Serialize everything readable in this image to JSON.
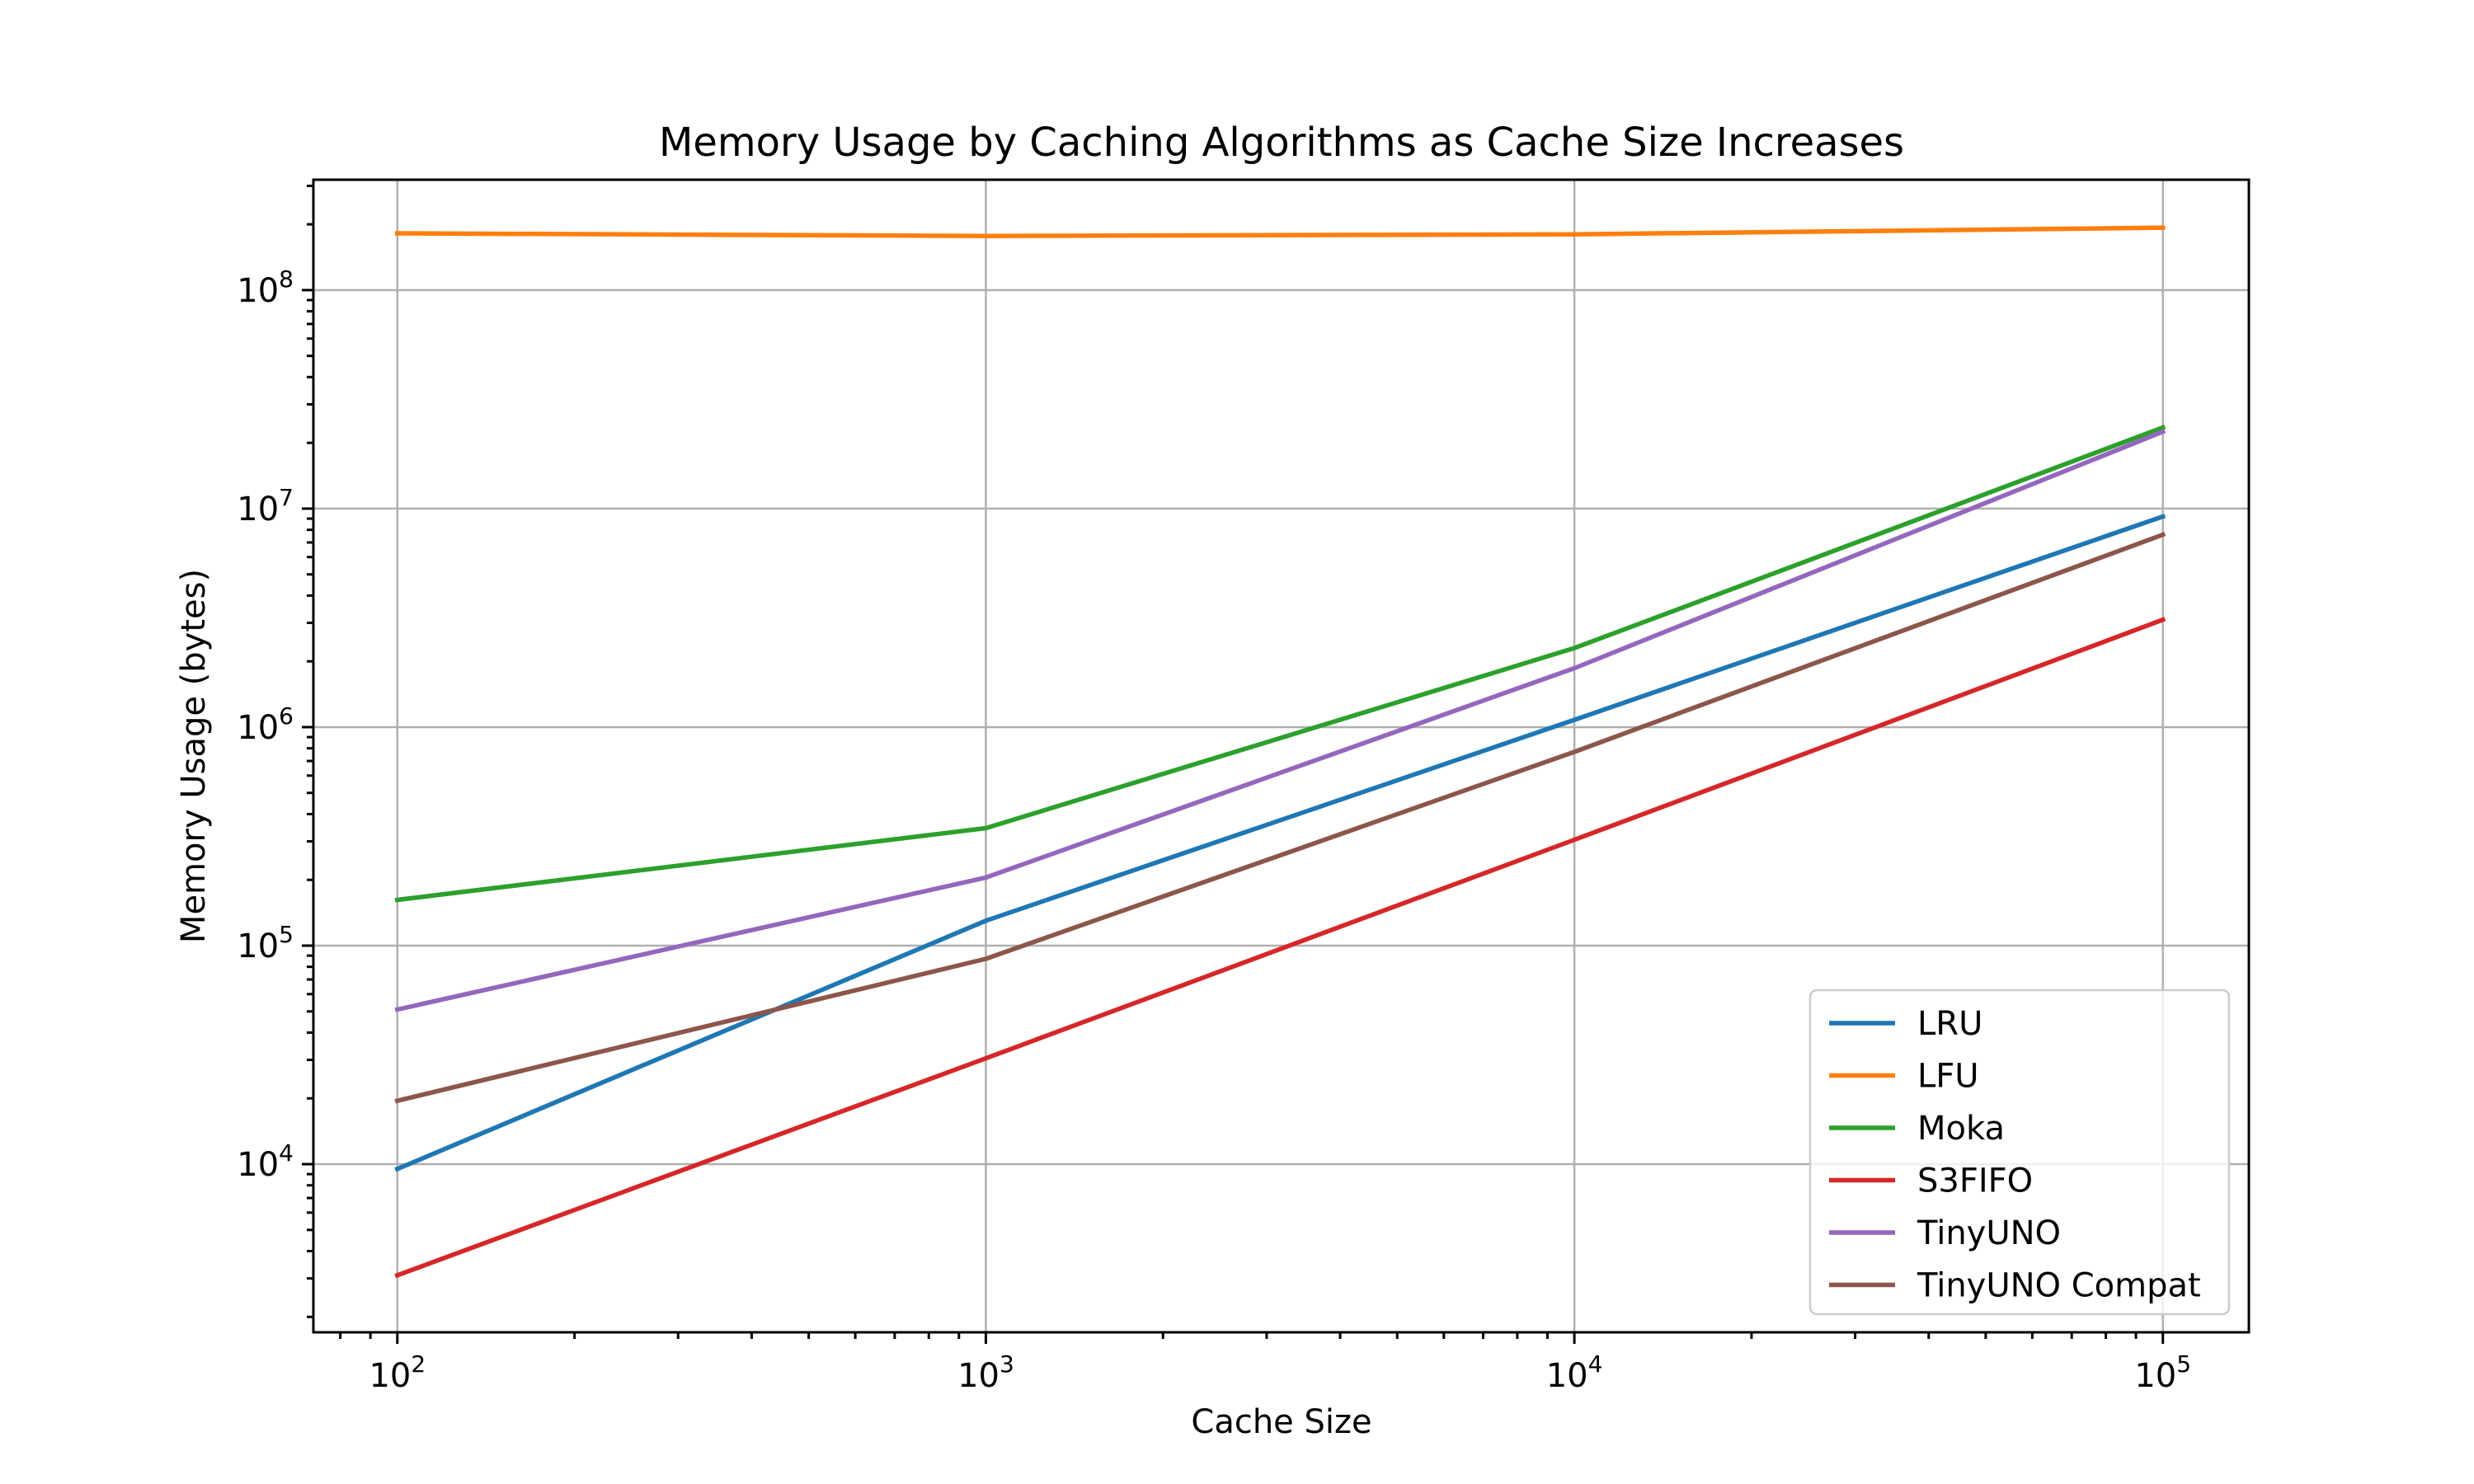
{
  "chart_data": {
    "type": "line",
    "title": "Memory Usage by Caching Algorithms as Cache Size Increases",
    "xlabel": "Cache Size",
    "ylabel": "Memory Usage (bytes)",
    "xscale": "log",
    "yscale": "log",
    "xlim": [
      72,
      140000
    ],
    "ylim": [
      1700,
      320000000
    ],
    "x": [
      100,
      1000,
      10000,
      100000
    ],
    "x_ticks": [
      {
        "value": 100,
        "base": "10",
        "exp": "2"
      },
      {
        "value": 1000,
        "base": "10",
        "exp": "3"
      },
      {
        "value": 10000,
        "base": "10",
        "exp": "4"
      },
      {
        "value": 100000,
        "base": "10",
        "exp": "5"
      }
    ],
    "y_ticks": [
      {
        "value": 10000,
        "base": "10",
        "exp": "4"
      },
      {
        "value": 100000,
        "base": "10",
        "exp": "5"
      },
      {
        "value": 1000000,
        "base": "10",
        "exp": "6"
      },
      {
        "value": 10000000,
        "base": "10",
        "exp": "7"
      },
      {
        "value": 100000000,
        "base": "10",
        "exp": "8"
      }
    ],
    "grid": true,
    "legend_position": "lower-right",
    "series": [
      {
        "name": "LRU",
        "color": "#1f77b4",
        "values": [
          9500,
          130000,
          1080000,
          9200000
        ]
      },
      {
        "name": "LFU",
        "color": "#ff7f0e",
        "values": [
          182000000,
          177000000,
          180000000,
          193000000
        ]
      },
      {
        "name": "Moka",
        "color": "#2ca02c",
        "values": [
          162000,
          345000,
          2300000,
          23500000
        ]
      },
      {
        "name": "S3FIFO",
        "color": "#d62728",
        "values": [
          3100,
          30500,
          305000,
          3100000
        ]
      },
      {
        "name": "TinyUNO",
        "color": "#9467bd",
        "values": [
          51000,
          205000,
          1860000,
          22500000
        ]
      },
      {
        "name": "TinyUNO Compat",
        "color": "#8c564b",
        "values": [
          19500,
          87000,
          770000,
          7600000
        ]
      }
    ]
  }
}
